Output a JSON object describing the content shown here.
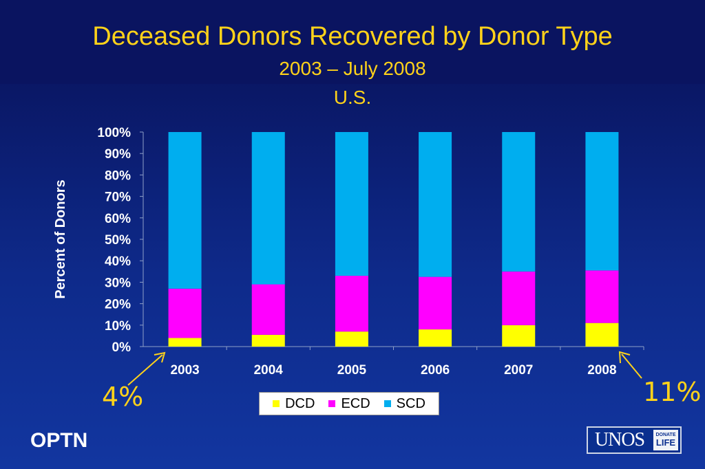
{
  "header": {
    "title": "Deceased Donors Recovered by Donor Type",
    "subtitle": "2003 – July 2008",
    "region": "U.S."
  },
  "annotations": {
    "left": "4%",
    "right": "11%"
  },
  "footer": {
    "org": "OPTN",
    "logo_text": "UNOS",
    "logo_badge_top": "DONATE",
    "logo_badge_bottom": "LIFE"
  },
  "colors": {
    "DCD": "#ffff00",
    "ECD": "#ff00ff",
    "SCD": "#00aeef",
    "title": "#ffd21a"
  },
  "chart_data": {
    "type": "bar",
    "stacked": true,
    "title": "",
    "xlabel": "",
    "ylabel": "Percent of Donors",
    "categories": [
      "2003",
      "2004",
      "2005",
      "2006",
      "2007",
      "2008"
    ],
    "series": [
      {
        "name": "DCD",
        "values": [
          4,
          5.5,
          7,
          8,
          10,
          11
        ]
      },
      {
        "name": "ECD",
        "values": [
          23,
          23.5,
          26,
          24.5,
          25,
          24.5
        ]
      },
      {
        "name": "SCD",
        "values": [
          73,
          71,
          67,
          67.5,
          65,
          64.5
        ]
      }
    ],
    "ylim": [
      0,
      100
    ],
    "yticks": [
      "0%",
      "10%",
      "20%",
      "30%",
      "40%",
      "50%",
      "60%",
      "70%",
      "80%",
      "90%",
      "100%"
    ],
    "grid": false,
    "legend_position": "bottom"
  }
}
